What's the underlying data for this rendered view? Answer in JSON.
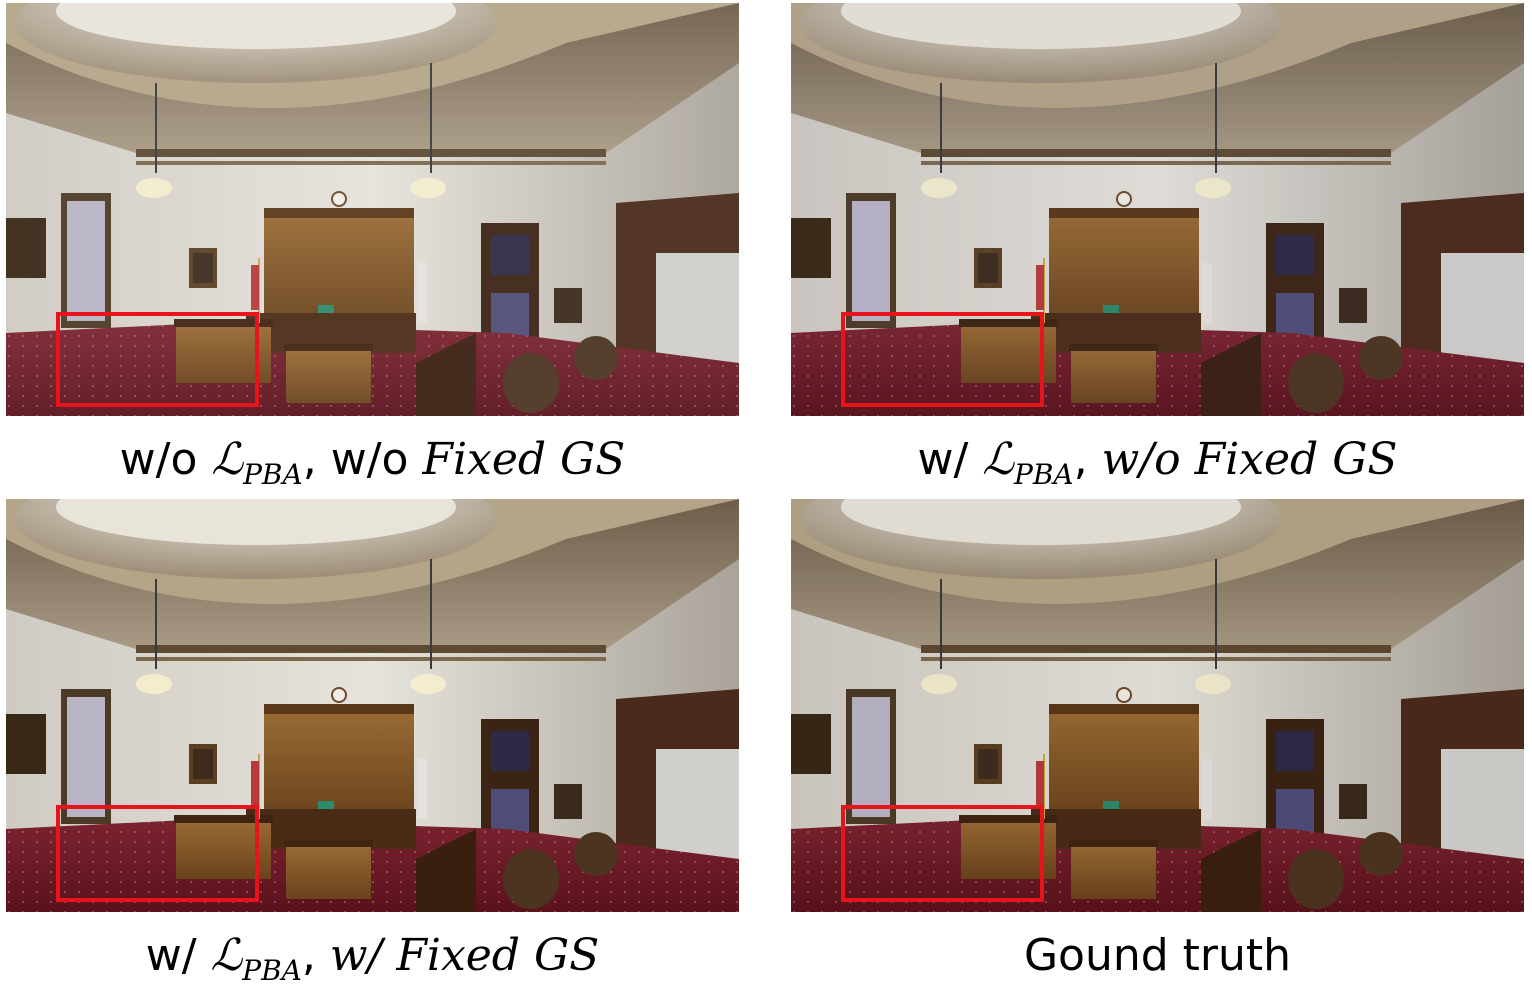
{
  "panels": [
    {
      "id": "p1",
      "caption": {
        "prefix": "w/o ",
        "loss_symbol": "ℒ",
        "loss_subscript": "PBA",
        "sep": ", ",
        "mid": "w/o ",
        "setting": "Fixed GS"
      }
    },
    {
      "id": "p2",
      "caption": {
        "prefix": "w/ ",
        "loss_symbol": "ℒ",
        "loss_subscript": "PBA",
        "sep": ", ",
        "mid": "w/o ",
        "setting": "Fixed GS"
      }
    },
    {
      "id": "p3",
      "caption": {
        "prefix": "w/ ",
        "loss_symbol": "ℒ",
        "loss_subscript": "PBA",
        "sep": ", ",
        "mid": "w/ ",
        "setting": "Fixed GS"
      }
    },
    {
      "id": "p4",
      "caption": {
        "text": "Gound truth"
      }
    }
  ],
  "colors": {
    "highlight_box": "#e8141c",
    "carpet": "#6e1822",
    "wall": "#d9d6cf",
    "wood": "#7a5226",
    "ceiling": "#8a7a64"
  }
}
